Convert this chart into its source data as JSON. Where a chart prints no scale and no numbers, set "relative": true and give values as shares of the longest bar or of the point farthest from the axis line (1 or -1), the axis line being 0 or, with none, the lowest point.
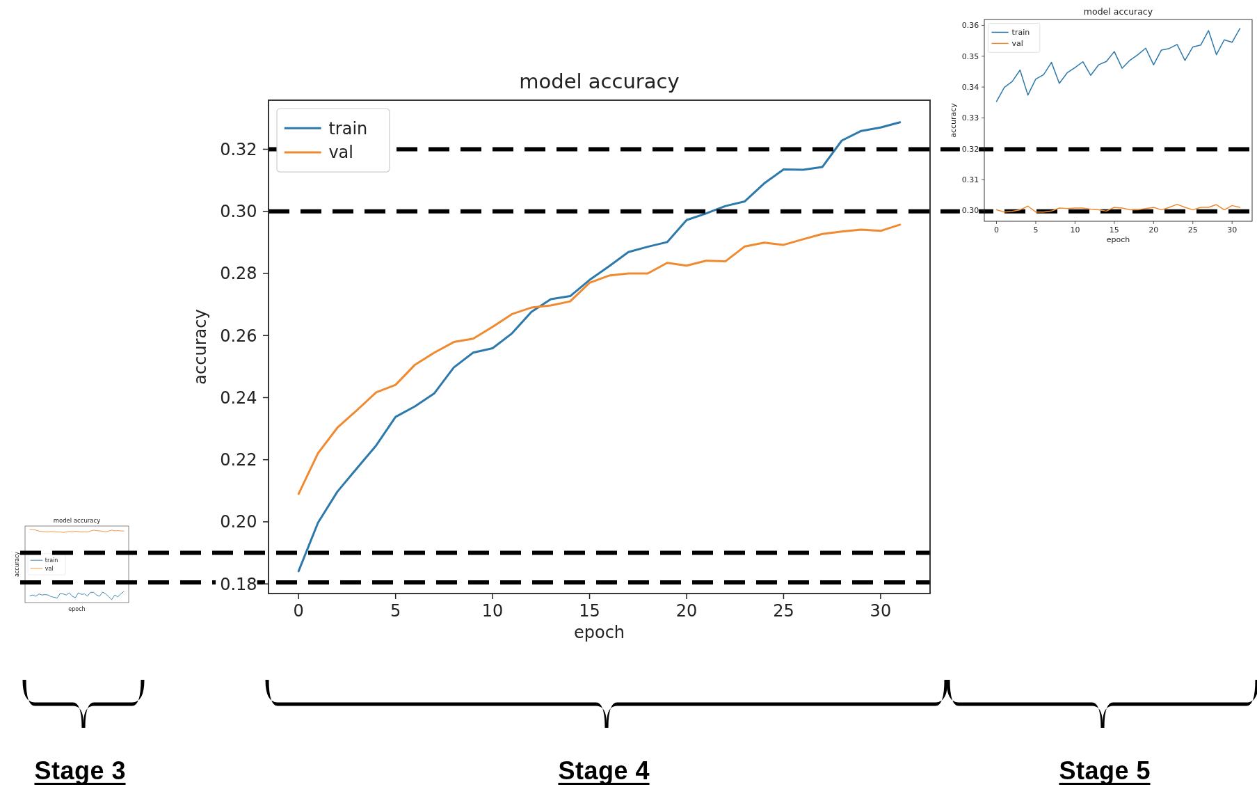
{
  "chart_data": [
    {
      "type": "line",
      "title": "model accuracy",
      "xlabel": "epoch",
      "ylabel": "accuracy",
      "relative": true,
      "tick_labels": false,
      "legend": "center left",
      "categories": [
        null,
        null,
        null,
        null,
        null,
        null,
        null,
        null,
        null,
        null,
        null,
        null,
        null,
        null,
        null,
        null,
        null,
        null,
        null,
        null,
        null,
        null,
        null,
        null,
        null,
        null,
        null,
        null,
        null,
        null,
        null,
        null
      ],
      "series": [
        {
          "name": "train",
          "color": "#2d79ab",
          "values": [
            0.093,
            0.103,
            0.087,
            0.118,
            0.103,
            0.109,
            0.103,
            0.081,
            0.072,
            0.062,
            0.125,
            0.118,
            0.103,
            0.134,
            0.087,
            0.065,
            0.134,
            0.112,
            0.118,
            0.087,
            0.14,
            0.14,
            0.103,
            0.087,
            0.143,
            0.118,
            0.081,
            0.04,
            0.103,
            0.078,
            0.118,
            0.15
          ]
        },
        {
          "name": "val",
          "color": "#f08a30",
          "values": [
            1,
            0.997,
            0.991,
            0.978,
            0.972,
            0.969,
            0.966,
            0.972,
            0.969,
            0.966,
            0.966,
            0.96,
            0.966,
            0.972,
            0.969,
            0.975,
            0.972,
            0.966,
            0.969,
            0.966,
            0.978,
            0.991,
            0.984,
            0.981,
            0.975,
            0.969,
            0.978,
            0.991,
            0.981,
            0.984,
            0.981,
            0.978
          ]
        }
      ],
      "annotations": [
        "Stage 3"
      ]
    },
    {
      "type": "line",
      "title": "model accuracy",
      "xlabel": "epoch",
      "ylabel": "accuracy",
      "legend": "top left",
      "x": [
        0,
        1,
        2,
        3,
        4,
        5,
        6,
        7,
        8,
        9,
        10,
        11,
        12,
        13,
        14,
        15,
        16,
        17,
        18,
        19,
        20,
        21,
        22,
        23,
        24,
        25,
        26,
        27,
        28,
        29,
        30,
        31
      ],
      "xlim": [
        -1.55,
        32.55
      ],
      "xticks": [
        0,
        5,
        10,
        15,
        20,
        25,
        30
      ],
      "ylim": [
        0.1769,
        0.3358
      ],
      "yticks": [
        {
          "value": 0.18,
          "label": "0.18"
        },
        {
          "value": 0.2,
          "label": "0.20"
        },
        {
          "value": 0.22,
          "label": "0.22"
        },
        {
          "value": 0.24,
          "label": "0.24"
        },
        {
          "value": 0.26,
          "label": "0.26"
        },
        {
          "value": 0.28,
          "label": "0.28"
        },
        {
          "value": 0.3,
          "label": "0.30"
        },
        {
          "value": 0.32,
          "label": "0.32"
        }
      ],
      "series": [
        {
          "name": "train",
          "color": "#2d79ab",
          "values": [
            0.1841,
            0.1997,
            0.2097,
            0.2172,
            0.2246,
            0.2338,
            0.2372,
            0.2414,
            0.2497,
            0.2545,
            0.2559,
            0.2607,
            0.2676,
            0.2717,
            0.2727,
            0.2779,
            0.2823,
            0.2869,
            0.2886,
            0.2901,
            0.2972,
            0.2993,
            0.3017,
            0.3032,
            0.309,
            0.3135,
            0.3134,
            0.3143,
            0.3228,
            0.3259,
            0.327,
            0.3287
          ]
        },
        {
          "name": "val",
          "color": "#f08a30",
          "values": [
            0.209,
            0.2221,
            0.2303,
            0.2359,
            0.2417,
            0.2441,
            0.2506,
            0.2545,
            0.2579,
            0.259,
            0.2628,
            0.2669,
            0.269,
            0.2697,
            0.271,
            0.277,
            0.2793,
            0.28,
            0.28,
            0.2834,
            0.2825,
            0.2841,
            0.2839,
            0.2887,
            0.2899,
            0.2892,
            0.291,
            0.2927,
            0.2935,
            0.2941,
            0.2937,
            0.2957
          ]
        }
      ],
      "ref_lines": [
        {
          "axis": "y",
          "value": 0.32,
          "color": "#000000",
          "line_style": "dashed"
        },
        {
          "axis": "y",
          "value": 0.3,
          "color": "#000000",
          "line_style": "dashed"
        },
        {
          "axis": "y",
          "value": 0.19,
          "color": "#000000",
          "line_style": "dashed"
        },
        {
          "axis": "y",
          "value": 0.1805,
          "color": "#000000",
          "line_style": "dashed"
        }
      ],
      "annotations": [
        "Stage 4"
      ]
    },
    {
      "type": "line",
      "title": "model accuracy",
      "xlabel": "epoch",
      "ylabel": "accuracy",
      "legend": "top left",
      "x": [
        0,
        1,
        2,
        3,
        4,
        5,
        6,
        7,
        8,
        9,
        10,
        11,
        12,
        13,
        14,
        15,
        16,
        17,
        18,
        19,
        20,
        21,
        22,
        23,
        24,
        25,
        26,
        27,
        28,
        29,
        30,
        31
      ],
      "xlim": [
        -1.55,
        32.55
      ],
      "xticks": [
        0,
        5,
        10,
        15,
        20,
        25,
        30
      ],
      "ylim": [
        0.2965,
        0.3619
      ],
      "yticks": [
        {
          "value": 0.3,
          "label": "0.30"
        },
        {
          "value": 0.31,
          "label": "0.31"
        },
        {
          "value": 0.32,
          "label": "0.32"
        },
        {
          "value": 0.33,
          "label": "0.33"
        },
        {
          "value": 0.34,
          "label": "0.34"
        },
        {
          "value": 0.35,
          "label": "0.35"
        },
        {
          "value": 0.36,
          "label": "0.36"
        }
      ],
      "series": [
        {
          "name": "train",
          "color": "#2d79ab",
          "values": [
            0.3353,
            0.3399,
            0.3418,
            0.3455,
            0.3374,
            0.3426,
            0.344,
            0.348,
            0.3412,
            0.3446,
            0.3463,
            0.3482,
            0.3438,
            0.3472,
            0.3483,
            0.3515,
            0.3461,
            0.3487,
            0.3505,
            0.3526,
            0.3472,
            0.352,
            0.3525,
            0.3538,
            0.3486,
            0.353,
            0.3536,
            0.3583,
            0.3505,
            0.3553,
            0.3545,
            0.359
          ]
        },
        {
          "name": "val",
          "color": "#f08a30",
          "values": [
            0.3002,
            0.2995,
            0.2997,
            0.3002,
            0.3014,
            0.2995,
            0.2995,
            0.2998,
            0.3008,
            0.3006,
            0.3008,
            0.3008,
            0.3004,
            0.3002,
            0.2998,
            0.301,
            0.3008,
            0.3002,
            0.3002,
            0.3006,
            0.301,
            0.3002,
            0.301,
            0.302,
            0.301,
            0.3002,
            0.301,
            0.301,
            0.3019,
            0.3002,
            0.3016,
            0.301
          ]
        }
      ],
      "annotations": [
        "Stage 5"
      ]
    }
  ]
}
